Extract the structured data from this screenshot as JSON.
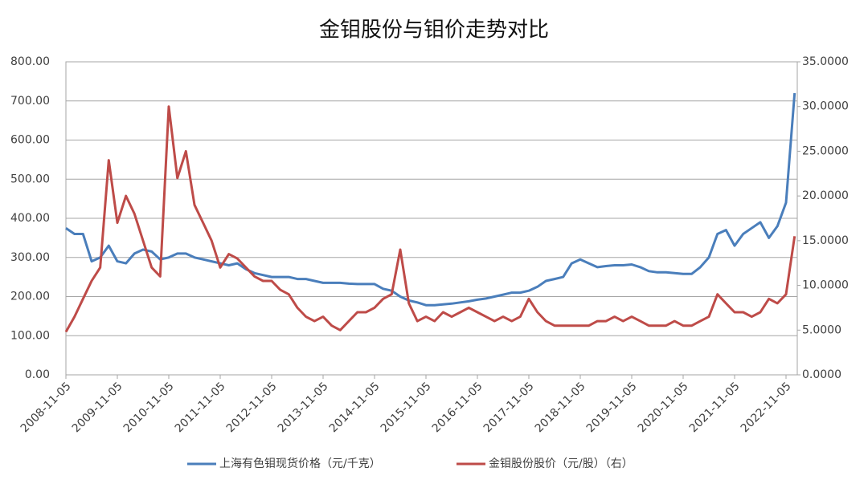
{
  "chart_data": {
    "type": "line",
    "title": "金钼股份与钼价走势对比",
    "categories": [
      "2008-11-05",
      null,
      null,
      null,
      null,
      null,
      "2009-11-05",
      null,
      null,
      null,
      null,
      null,
      "2010-11-05",
      null,
      null,
      null,
      null,
      null,
      "2011-11-05",
      null,
      null,
      null,
      null,
      null,
      "2012-11-05",
      null,
      null,
      null,
      null,
      null,
      "2013-11-05",
      null,
      null,
      null,
      null,
      null,
      "2014-11-05",
      null,
      null,
      null,
      null,
      null,
      "2015-11-05",
      null,
      null,
      null,
      null,
      null,
      "2016-11-05",
      null,
      null,
      null,
      null,
      null,
      "2017-11-05",
      null,
      null,
      null,
      null,
      null,
      "2018-11-05",
      null,
      null,
      null,
      null,
      null,
      "2019-11-05",
      null,
      null,
      null,
      null,
      null,
      "2020-11-05",
      null,
      null,
      null,
      null,
      null,
      "2021-11-05",
      null,
      null,
      null,
      null,
      null,
      "2022-11-05",
      null
    ],
    "series": [
      {
        "name": "上海有色钼现货价格（元/千克）",
        "color": "#4a7ebb",
        "values": [
          375,
          360,
          360,
          290,
          300,
          330,
          290,
          285,
          310,
          320,
          315,
          295,
          300,
          310,
          310,
          300,
          295,
          290,
          285,
          280,
          285,
          270,
          260,
          255,
          250,
          250,
          250,
          245,
          245,
          240,
          235,
          235,
          235,
          233,
          232,
          232,
          232,
          220,
          215,
          200,
          190,
          185,
          178,
          178,
          180,
          182,
          185,
          188,
          192,
          195,
          200,
          205,
          210,
          210,
          215,
          225,
          240,
          245,
          250,
          285,
          295,
          285,
          275,
          278,
          280,
          280,
          282,
          275,
          265,
          262,
          262,
          260,
          258,
          258,
          275,
          300,
          360,
          370,
          330,
          360,
          375,
          390,
          350,
          380,
          440,
          720
        ]
      },
      {
        "name": "金钼股份股价（元/股）（右）",
        "color": "#be4b48",
        "axis": "y2",
        "values": [
          4.8,
          6.5,
          8.5,
          10.5,
          12,
          24,
          17,
          20,
          18,
          15,
          12,
          11,
          30,
          22,
          25,
          19,
          17,
          15,
          12,
          13.5,
          13,
          12,
          11,
          10.5,
          10.5,
          9.5,
          9,
          7.5,
          6.5,
          6,
          6.5,
          5.5,
          5,
          6,
          7,
          7,
          7.5,
          8.5,
          9,
          14,
          8,
          6,
          6.5,
          6,
          7,
          6.5,
          7,
          7.5,
          7,
          6.5,
          6,
          6.5,
          6,
          6.5,
          8.5,
          7,
          6,
          5.5,
          5.5,
          5.5,
          5.5,
          5.5,
          6,
          6,
          6.5,
          6,
          6.5,
          6,
          5.5,
          5.5,
          5.5,
          6,
          5.5,
          5.5,
          6,
          6.5,
          9,
          8,
          7,
          7,
          6.5,
          7,
          8.5,
          8,
          9,
          15.5
        ]
      }
    ],
    "ylim": [
      0,
      800
    ],
    "yticks": [
      {
        "value": 0,
        "label": "0.00"
      },
      {
        "value": 100,
        "label": "100.00"
      },
      {
        "value": 200,
        "label": "200.00"
      },
      {
        "value": 300,
        "label": "300.00"
      },
      {
        "value": 400,
        "label": "400.00"
      },
      {
        "value": 500,
        "label": "500.00"
      },
      {
        "value": 600,
        "label": "600.00"
      },
      {
        "value": 700,
        "label": "700.00"
      },
      {
        "value": 800,
        "label": "800.00"
      }
    ],
    "y2lim": [
      0,
      35
    ],
    "y2ticks": [
      {
        "value": 0,
        "label": "0.0000"
      },
      {
        "value": 5,
        "label": "5.0000"
      },
      {
        "value": 10,
        "label": "10.0000"
      },
      {
        "value": 15,
        "label": "15.0000"
      },
      {
        "value": 20,
        "label": "20.0000"
      },
      {
        "value": 25,
        "label": "25.0000"
      },
      {
        "value": 30,
        "label": "30.0000"
      },
      {
        "value": 35,
        "label": "35.0000"
      }
    ],
    "grid": true,
    "legend": "bottom"
  }
}
